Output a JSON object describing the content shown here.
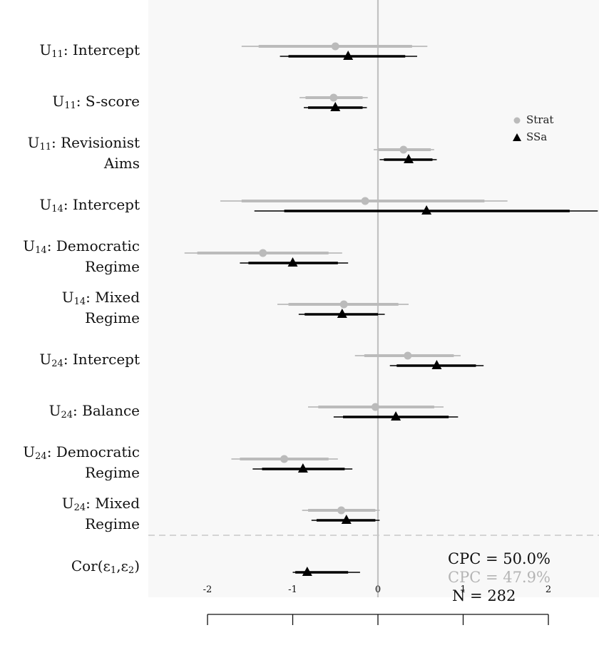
{
  "chart_data": {
    "type": "forest",
    "xlim": [
      -2.7,
      2.6
    ],
    "x_ticks": [
      -2,
      -1,
      0,
      1,
      2
    ],
    "x_tick_labels": [
      "-2",
      "-1",
      "0",
      "1",
      "2"
    ],
    "reference_line": 0,
    "legend": {
      "position": "top-right",
      "entries": [
        {
          "key": "strat",
          "name": "Strat",
          "marker": "circle",
          "color": "#bbbbbb"
        },
        {
          "key": "ssa",
          "name": "SSa",
          "marker": "triangle",
          "color": "#000000"
        }
      ]
    },
    "rows": [
      {
        "label_html": "U<sub>11</sub>: Intercept",
        "strat": {
          "est": -0.5,
          "inner": [
            -1.4,
            0.4
          ],
          "outer": [
            -1.6,
            0.58
          ]
        },
        "ssa": {
          "est": -0.35,
          "inner": [
            -1.05,
            0.32
          ],
          "outer": [
            -1.15,
            0.46
          ]
        }
      },
      {
        "label_html": "U<sub>11</sub>: S-score",
        "strat": {
          "est": -0.52,
          "inner": [
            -0.85,
            -0.18
          ],
          "outer": [
            -0.92,
            -0.12
          ]
        },
        "ssa": {
          "est": -0.5,
          "inner": [
            -0.82,
            -0.18
          ],
          "outer": [
            -0.87,
            -0.13
          ]
        }
      },
      {
        "label_html": "U<sub>11</sub>: Revisionist<br>Aims",
        "strat": {
          "est": 0.3,
          "inner": [
            0.0,
            0.62
          ],
          "outer": [
            -0.05,
            0.66
          ]
        },
        "ssa": {
          "est": 0.36,
          "inner": [
            0.07,
            0.64
          ],
          "outer": [
            0.02,
            0.69
          ]
        }
      },
      {
        "label_html": "U<sub>14</sub>: Intercept",
        "strat": {
          "est": -0.15,
          "inner": [
            -1.6,
            1.25
          ],
          "outer": [
            -1.85,
            1.52
          ]
        },
        "ssa": {
          "est": 0.57,
          "inner": [
            -1.1,
            2.25
          ],
          "outer": [
            -1.45,
            2.58
          ]
        }
      },
      {
        "label_html": "U<sub>14</sub>: Democratic<br>Regime",
        "strat": {
          "est": -1.35,
          "inner": [
            -2.12,
            -0.58
          ],
          "outer": [
            -2.27,
            -0.42
          ]
        },
        "ssa": {
          "est": -1.0,
          "inner": [
            -1.52,
            -0.47
          ],
          "outer": [
            -1.62,
            -0.35
          ]
        }
      },
      {
        "label_html": "U<sub>14</sub>: Mixed<br>Regime",
        "strat": {
          "est": -0.4,
          "inner": [
            -1.05,
            0.24
          ],
          "outer": [
            -1.18,
            0.36
          ]
        },
        "ssa": {
          "est": -0.42,
          "inner": [
            -0.86,
            0.0
          ],
          "outer": [
            -0.93,
            0.08
          ]
        }
      },
      {
        "label_html": "U<sub>24</sub>: Intercept",
        "strat": {
          "est": 0.35,
          "inner": [
            -0.16,
            0.89
          ],
          "outer": [
            -0.27,
            0.97
          ]
        },
        "ssa": {
          "est": 0.69,
          "inner": [
            0.22,
            1.15
          ],
          "outer": [
            0.14,
            1.24
          ]
        }
      },
      {
        "label_html": "U<sub>24</sub>: Balance",
        "strat": {
          "est": -0.03,
          "inner": [
            -0.7,
            0.66
          ],
          "outer": [
            -0.82,
            0.77
          ]
        },
        "ssa": {
          "est": 0.21,
          "inner": [
            -0.41,
            0.83
          ],
          "outer": [
            -0.52,
            0.94
          ]
        }
      },
      {
        "label_html": "U<sub>24</sub>: Democratic<br>Regime",
        "strat": {
          "est": -1.1,
          "inner": [
            -1.62,
            -0.58
          ],
          "outer": [
            -1.72,
            -0.47
          ]
        },
        "ssa": {
          "est": -0.88,
          "inner": [
            -1.36,
            -0.39
          ],
          "outer": [
            -1.47,
            -0.3
          ]
        }
      },
      {
        "label_html": "U<sub>24</sub>: Mixed<br>Regime",
        "strat": {
          "est": -0.43,
          "inner": [
            -0.82,
            -0.03
          ],
          "outer": [
            -0.89,
            0.02
          ]
        },
        "ssa": {
          "est": -0.37,
          "inner": [
            -0.72,
            -0.03
          ],
          "outer": [
            -0.78,
            0.02
          ]
        }
      },
      {
        "label_html": "Cor(ε<sub>1</sub>,ε<sub>2</sub>)",
        "strat": null,
        "ssa": {
          "est": -0.83,
          "inner": [
            -0.97,
            -0.35
          ],
          "outer": [
            -1.0,
            -0.21
          ]
        }
      }
    ],
    "annotations": {
      "cpc_ssa": "CPC = 50.0%",
      "cpc_strat": "CPC = 47.9%",
      "n": "N = 282"
    },
    "colors": {
      "strat": "#bbbbbb",
      "ssa": "#000000",
      "panel": "#f8f8f8",
      "reference": "#c2c2c2",
      "separator": "#c8c8c8"
    }
  }
}
